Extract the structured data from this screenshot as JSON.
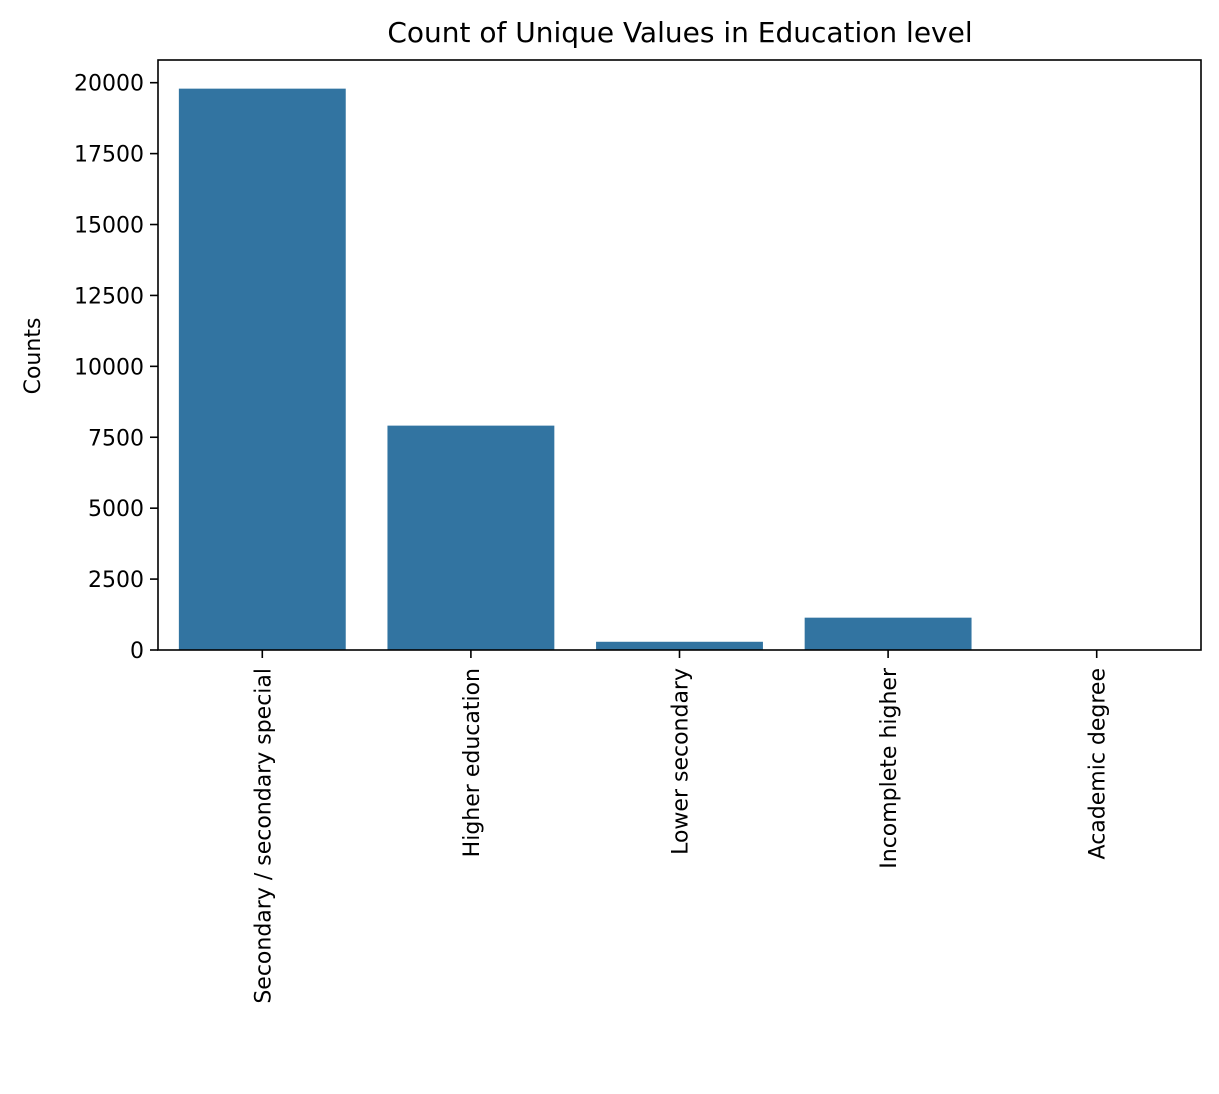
{
  "chart_data": {
    "type": "bar",
    "title": "Count of Unique Values in Education level",
    "xlabel": "",
    "ylabel": "Counts",
    "categories": [
      "Secondary / secondary special",
      "Higher education",
      "Lower secondary",
      "Incomplete higher",
      "Academic degree"
    ],
    "values": [
      19790,
      7910,
      290,
      1140,
      10
    ],
    "ylim": [
      0,
      20800
    ],
    "yticks": [
      0,
      2500,
      5000,
      7500,
      10000,
      12500,
      15000,
      17500,
      20000
    ],
    "bar_color": "#3274a1",
    "grid": false,
    "legend": "none"
  }
}
